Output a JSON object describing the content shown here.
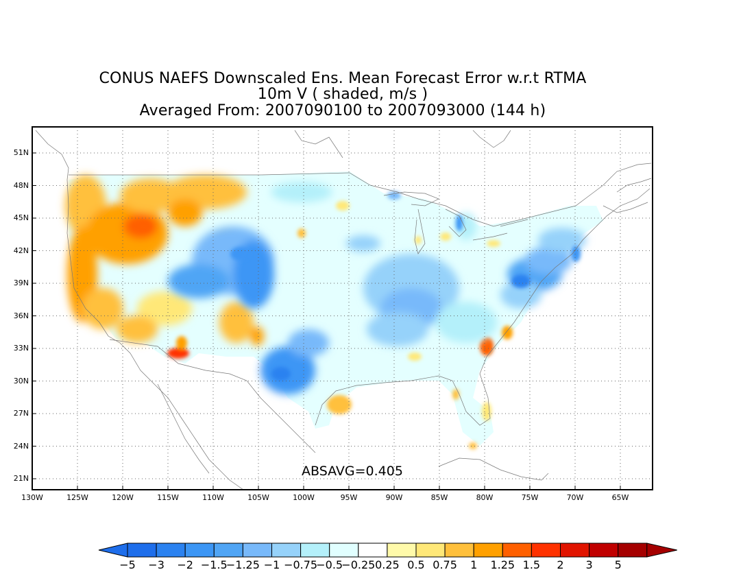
{
  "title": {
    "line1": "CONUS NAEFS Downscaled Ens. Mean Forecast Error w.r.t RTMA",
    "line2": "10m V ( shaded, m/s )",
    "line3": "Averaged From: 2007090100 to 2007093000 (144 h)"
  },
  "map": {
    "lat_labels": [
      "51N",
      "48N",
      "45N",
      "42N",
      "39N",
      "36N",
      "33N",
      "30N",
      "27N",
      "24N",
      "21N"
    ],
    "lon_labels": [
      "130W",
      "125W",
      "120W",
      "115W",
      "110W",
      "105W",
      "100W",
      "95W",
      "90W",
      "85W",
      "80W",
      "75W",
      "70W",
      "65W"
    ],
    "grid": true,
    "absavg": "ABSAVG=0.405"
  },
  "colorbar": {
    "labels": [
      "-5",
      "-3",
      "-2",
      "-1.5",
      "-1.25",
      "-1",
      "-0.75",
      "-0.5",
      "-0.25",
      "0.25",
      "0.5",
      "0.75",
      "1",
      "1.25",
      "1.5",
      "2",
      "3",
      "5"
    ],
    "colors": [
      "#1e6eeb",
      "#2b82f0",
      "#3c96f5",
      "#50a5f5",
      "#78b9fa",
      "#96d2fa",
      "#b4f0fa",
      "#e1ffff",
      "#ffffff",
      "#fffaaa",
      "#ffe878",
      "#ffc03c",
      "#ffa000",
      "#ff6000",
      "#ff3200",
      "#e11400",
      "#c00000",
      "#a50000"
    ],
    "arrow_left_color": "#1e6eeb",
    "arrow_right_color": "#a50000"
  }
}
